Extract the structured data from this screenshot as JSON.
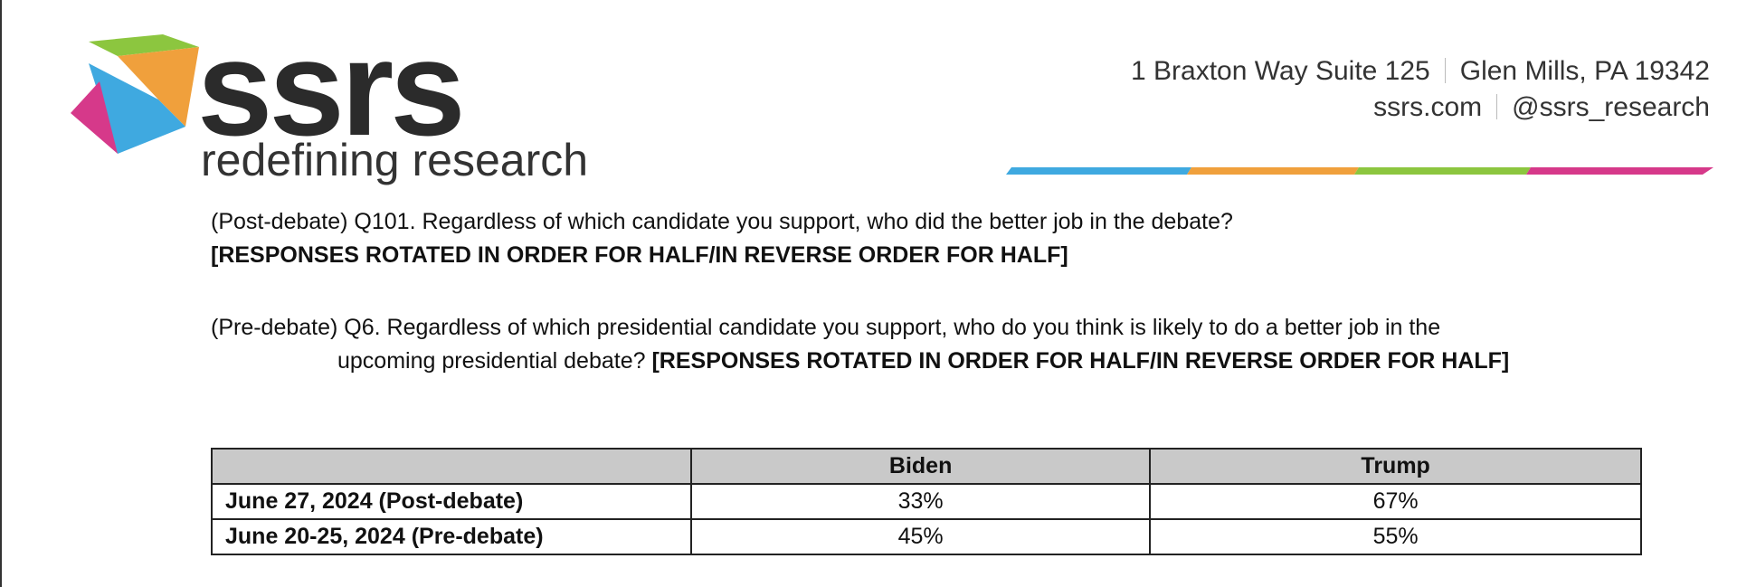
{
  "header": {
    "logo_text": "ssrs",
    "tagline": "redefining research",
    "address": [
      "1 Braxton Way Suite 125",
      "Glen Mills, PA 19342"
    ],
    "contact": [
      "ssrs.com",
      "@ssrs_research"
    ]
  },
  "questions": [
    {
      "text": "(Post-debate) Q101. Regardless of which candidate you support, who did the better job in the debate?",
      "instruction": "[RESPONSES ROTATED IN ORDER FOR HALF/IN REVERSE ORDER FOR HALF]"
    },
    {
      "text": "(Pre-debate) Q6. Regardless of which presidential candidate you support, who do you think is likely to do a better job in the upcoming presidential debate?",
      "instruction": "[RESPONSES ROTATED IN ORDER FOR HALF/IN REVERSE ORDER FOR HALF]"
    }
  ],
  "table": {
    "columns": [
      "Biden",
      "Trump"
    ],
    "rows": [
      {
        "label": "June 27, 2024 (Post-debate)",
        "cells": [
          "33%",
          "67%"
        ]
      },
      {
        "label": "June 20-25, 2024 (Pre-debate)",
        "cells": [
          "45%",
          "55%"
        ]
      }
    ]
  }
}
